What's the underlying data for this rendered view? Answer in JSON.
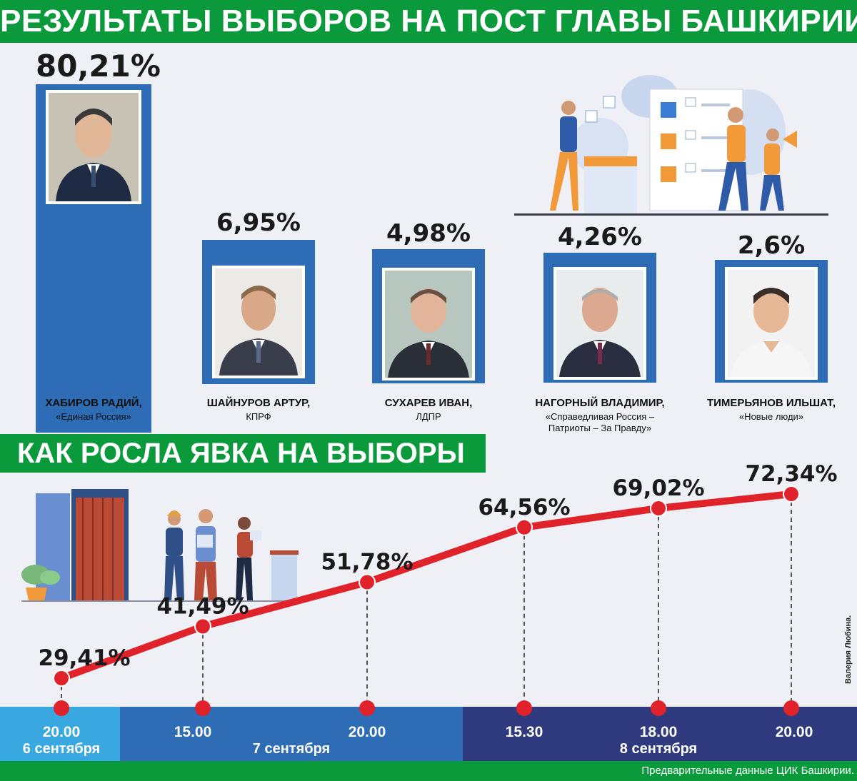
{
  "title": "РЕЗУЛЬТАТЫ ВЫБОРОВ НА ПОСТ ГЛАВЫ БАШКИРИИ",
  "candidates": [
    {
      "percent_label": "80,21%",
      "value": 80.21,
      "name": "ХАБИРОВ РАДИЙ,",
      "party": "«Единая Россия»"
    },
    {
      "percent_label": "6,95%",
      "value": 6.95,
      "name": "ШАЙНУРОВ АРТУР,",
      "party": "КПРФ"
    },
    {
      "percent_label": "4,98%",
      "value": 4.98,
      "name": "СУХАРЕВ ИВАН,",
      "party": "ЛДПР"
    },
    {
      "percent_label": "4,26%",
      "value": 4.26,
      "name": "НАГОРНЫЙ ВЛАДИМИР,",
      "party_line1": "«Справедливая Россия –",
      "party_line2": "Патриоты – За Правду»"
    },
    {
      "percent_label": "2,6%",
      "value": 2.6,
      "name": "ТИМЕРЬЯНОВ ИЛЬШАТ,",
      "party": "«Новые люди»"
    }
  ],
  "turnout_title": "КАК РОСЛА ЯВКА НА ВЫБОРЫ",
  "chart_data": [
    {
      "type": "bar",
      "title": "РЕЗУЛЬТАТЫ ВЫБОРОВ НА ПОСТ ГЛАВЫ БАШКИРИИ",
      "categories": [
        "ХАБИРОВ РАДИЙ",
        "ШАЙНУРОВ АРТУР",
        "СУХАРЕВ ИВАН",
        "НАГОРНЫЙ ВЛАДИМИР",
        "ТИМЕРЬЯНОВ ИЛЬШАТ"
      ],
      "values": [
        80.21,
        6.95,
        4.98,
        4.26,
        2.6
      ]
    },
    {
      "type": "line",
      "title": "КАК РОСЛА ЯВКА НА ВЫБОРЫ",
      "x": [
        "6 сентября 20.00",
        "7 сентября 15.00",
        "7 сентября 20.00",
        "8 сентября 15.30",
        "8 сентября 18.00",
        "8 сентября 20.00"
      ],
      "values": [
        29.41,
        41.49,
        51.78,
        64.56,
        69.02,
        72.34
      ],
      "labels": [
        "29,41%",
        "41,49%",
        "51,78%",
        "64,56%",
        "69,02%",
        "72,34%"
      ]
    }
  ],
  "timeline": {
    "times": [
      "20.00",
      "15.00",
      "20.00",
      "15.30",
      "18.00",
      "20.00"
    ],
    "days": [
      "6 сентября",
      "7 сентября",
      "8 сентября"
    ]
  },
  "colors": {
    "green": "#0a9a3c",
    "blue": "#2e6cb6",
    "red": "#e0222a",
    "day1": "#3aa8e0",
    "day2": "#2e6cb6",
    "day3": "#2f3a7f"
  },
  "footer_note": "Предварительные данные ЦИК Башкирии.",
  "credit": "Валерия Любина."
}
